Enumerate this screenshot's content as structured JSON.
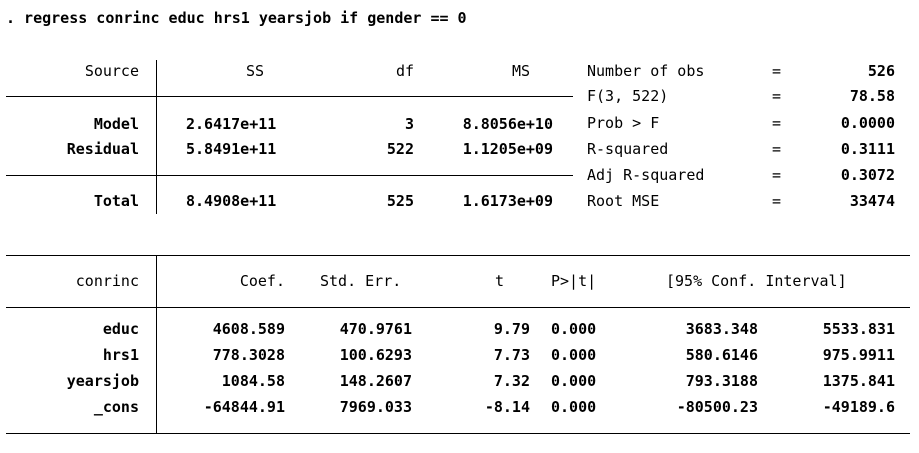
{
  "command": ". regress conrinc educ hrs1 yearsjob if gender == 0",
  "anova": {
    "headers": {
      "source": "Source",
      "ss": "SS",
      "df": "df",
      "ms": "MS"
    },
    "rows": [
      {
        "source": "Model",
        "ss": "2.6417e+11",
        "df": "3",
        "ms": "8.8056e+10"
      },
      {
        "source": "Residual",
        "ss": "5.8491e+11",
        "df": "522",
        "ms": "1.1205e+09"
      },
      {
        "source": "Total",
        "ss": "8.4908e+11",
        "df": "525",
        "ms": "1.6173e+09"
      }
    ]
  },
  "stats": [
    {
      "label": "Number of obs",
      "eq": "=",
      "value": "526"
    },
    {
      "label": "F(3, 522)",
      "eq": "=",
      "value": "78.58"
    },
    {
      "label": "Prob > F",
      "eq": "=",
      "value": "0.0000"
    },
    {
      "label": "R-squared",
      "eq": "=",
      "value": "0.3111"
    },
    {
      "label": "Adj R-squared",
      "eq": "=",
      "value": "0.3072"
    },
    {
      "label": "Root MSE",
      "eq": "=",
      "value": "33474"
    }
  ],
  "coef": {
    "headers": {
      "var": "conrinc",
      "coef": "Coef.",
      "se": "Std. Err.",
      "t": "t",
      "p": "P>|t|",
      "ci": "[95% Conf. Interval]"
    },
    "rows": [
      {
        "var": "educ",
        "coef": "4608.589",
        "se": "470.9761",
        "t": "9.79",
        "p": "0.000",
        "lo": "3683.348",
        "hi": "5533.831"
      },
      {
        "var": "hrs1",
        "coef": "778.3028",
        "se": "100.6293",
        "t": "7.73",
        "p": "0.000",
        "lo": "580.6146",
        "hi": "975.9911"
      },
      {
        "var": "yearsjob",
        "coef": "1084.58",
        "se": "148.2607",
        "t": "7.32",
        "p": "0.000",
        "lo": "793.3188",
        "hi": "1375.841"
      },
      {
        "var": "_cons",
        "coef": "-64844.91",
        "se": "7969.033",
        "t": "-8.14",
        "p": "0.000",
        "lo": "-80500.23",
        "hi": "-49189.6"
      }
    ]
  }
}
